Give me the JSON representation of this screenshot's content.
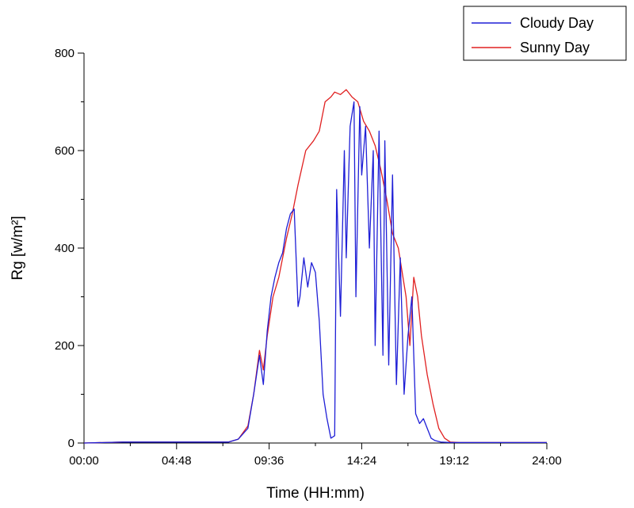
{
  "chart_data": {
    "type": "line",
    "xlabel": "Time (HH:mm)",
    "ylabel": "Rg [w/m²]",
    "xlim": [
      0,
      24
    ],
    "ylim": [
      0,
      800
    ],
    "x_ticks": [
      {
        "value": 0,
        "label": "00:00"
      },
      {
        "value": 4.8,
        "label": "04:48"
      },
      {
        "value": 9.6,
        "label": "09:36"
      },
      {
        "value": 14.4,
        "label": "14:24"
      },
      {
        "value": 19.2,
        "label": "19:12"
      },
      {
        "value": 24,
        "label": "24:00"
      }
    ],
    "y_ticks": [
      {
        "value": 0,
        "label": "0"
      },
      {
        "value": 200,
        "label": "200"
      },
      {
        "value": 400,
        "label": "400"
      },
      {
        "value": 600,
        "label": "600"
      },
      {
        "value": 800,
        "label": "800"
      }
    ],
    "grid": false,
    "legend_position": "top-right",
    "series": [
      {
        "name": "Cloudy Day",
        "color": "#1f1fd6",
        "x": [
          0,
          2,
          4,
          6,
          7.5,
          8,
          8.5,
          8.8,
          9.1,
          9.3,
          9.5,
          9.7,
          9.9,
          10.1,
          10.3,
          10.5,
          10.7,
          10.9,
          11.1,
          11.2,
          11.4,
          11.6,
          11.8,
          12.0,
          12.2,
          12.4,
          12.6,
          12.8,
          13.0,
          13.1,
          13.3,
          13.5,
          13.6,
          13.8,
          14.0,
          14.1,
          14.3,
          14.4,
          14.6,
          14.8,
          15.0,
          15.1,
          15.3,
          15.5,
          15.6,
          15.8,
          16.0,
          16.2,
          16.4,
          16.6,
          16.8,
          17.0,
          17.2,
          17.4,
          17.6,
          17.8,
          18.0,
          18.2,
          18.5,
          19.0,
          20,
          22,
          24
        ],
        "y": [
          0,
          2,
          2,
          2,
          2,
          8,
          30,
          100,
          180,
          120,
          230,
          300,
          340,
          370,
          390,
          440,
          470,
          480,
          280,
          300,
          380,
          320,
          370,
          350,
          250,
          100,
          50,
          10,
          15,
          520,
          260,
          600,
          380,
          650,
          700,
          300,
          690,
          550,
          650,
          400,
          600,
          200,
          640,
          180,
          620,
          160,
          550,
          120,
          380,
          100,
          220,
          300,
          60,
          40,
          50,
          30,
          10,
          5,
          2,
          1,
          1,
          1,
          1
        ]
      },
      {
        "name": "Sunny Day",
        "color": "#e02020",
        "x": [
          0,
          2,
          4,
          6,
          7.5,
          8,
          8.5,
          8.8,
          9.1,
          9.3,
          9.5,
          9.8,
          10.1,
          10.5,
          10.8,
          11.1,
          11.5,
          11.9,
          12.2,
          12.5,
          12.8,
          13.0,
          13.3,
          13.6,
          13.9,
          14.2,
          14.5,
          14.8,
          15.1,
          15.4,
          15.7,
          16.0,
          16.3,
          16.5,
          16.7,
          16.9,
          17.1,
          17.3,
          17.5,
          17.8,
          18.1,
          18.4,
          18.7,
          19.0,
          19.5,
          20,
          22,
          24
        ],
        "y": [
          0,
          2,
          2,
          2,
          2,
          8,
          35,
          100,
          190,
          150,
          220,
          300,
          340,
          420,
          470,
          530,
          600,
          620,
          640,
          700,
          710,
          720,
          715,
          725,
          710,
          700,
          660,
          640,
          610,
          560,
          500,
          430,
          400,
          350,
          300,
          200,
          340,
          300,
          220,
          140,
          80,
          30,
          10,
          2,
          1,
          1,
          1,
          1
        ]
      }
    ]
  }
}
